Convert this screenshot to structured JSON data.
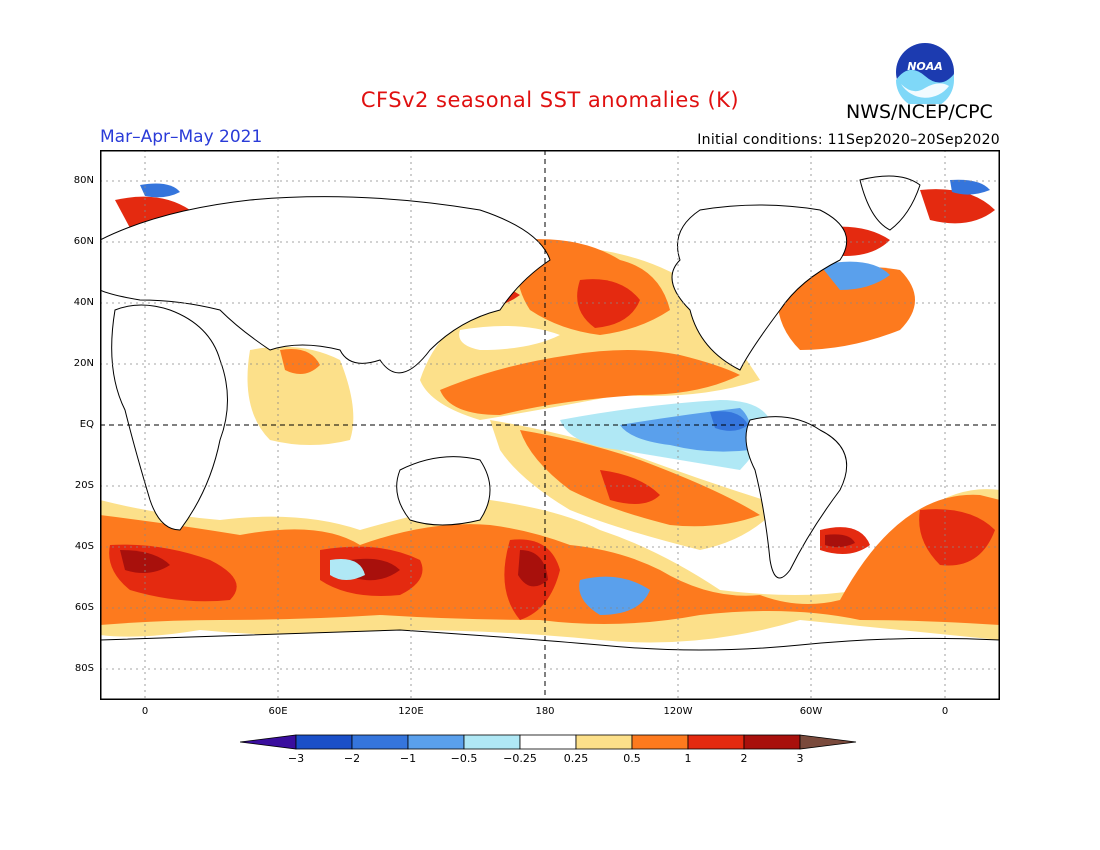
{
  "header": {
    "title": "CFSv2 seasonal SST anomalies (K)",
    "agency": "NWS/NCEP/CPC",
    "period": "Mar–Apr–May 2021",
    "initial_conditions": "Initial conditions: 11Sep2020–20Sep2020",
    "logo_text": "NOAA"
  },
  "map": {
    "lat_labels": [
      "80N",
      "60N",
      "40N",
      "20N",
      "EQ",
      "20S",
      "40S",
      "60S",
      "80S"
    ],
    "lon_labels": [
      "0",
      "60E",
      "120E",
      "180",
      "120W",
      "60W",
      "0"
    ],
    "colors": {
      "land": "#ffffff",
      "coast": "#000000",
      "grid": "#888888"
    }
  },
  "colorbar": {
    "labels": [
      "−3",
      "−2",
      "−1",
      "−0.5",
      "−0.25",
      "0.25",
      "0.5",
      "1",
      "2",
      "3"
    ],
    "colors": [
      "#3a0e9e",
      "#1a4fc8",
      "#3575dc",
      "#5aa0ec",
      "#b0e8f5",
      "#ffffff",
      "#fce08a",
      "#fd7a1e",
      "#e42a10",
      "#a8100c",
      "#7a4a3c"
    ]
  }
}
